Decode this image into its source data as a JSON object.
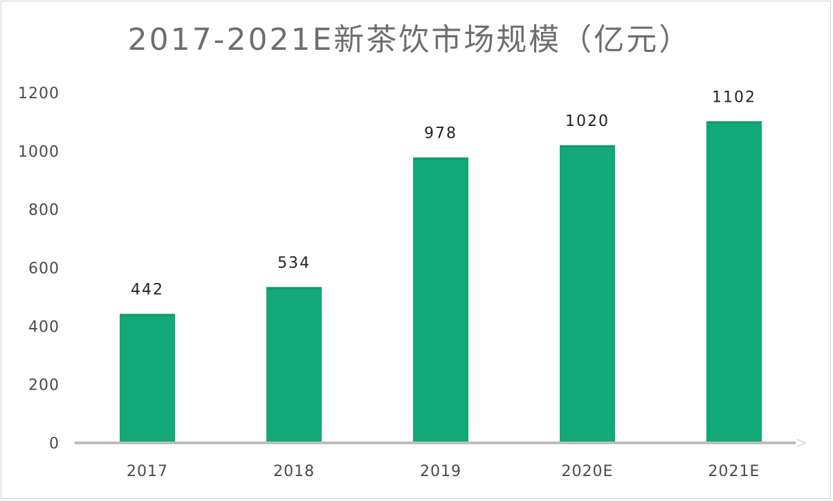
{
  "chart_data": {
    "type": "bar",
    "title": "2017-2021E新茶饮市场规模（亿元）",
    "categories": [
      "2017",
      "2018",
      "2019",
      "2020E",
      "2021E"
    ],
    "values": [
      442,
      534,
      978,
      1020,
      1102
    ],
    "data_labels": [
      "442",
      "534",
      "978",
      "1020",
      "1102"
    ],
    "ylim": [
      0,
      1200
    ],
    "yticks": [
      0,
      200,
      400,
      600,
      800,
      1000,
      1200
    ],
    "xlabel": "",
    "ylabel": "",
    "grid": false,
    "legend": "none",
    "bar_color": "#12a878",
    "axis_color": "#bdbdbd"
  }
}
